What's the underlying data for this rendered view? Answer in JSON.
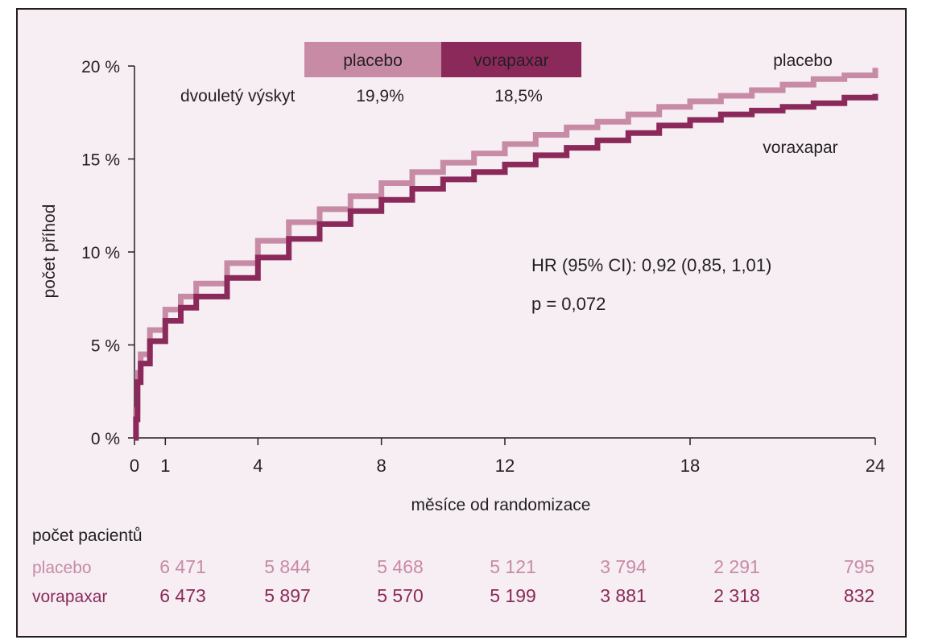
{
  "chart_data": {
    "type": "line",
    "title": "",
    "xlabel": "měsíce od randomizace",
    "ylabel": "počet příhod",
    "x_ticks": [
      0,
      1,
      4,
      8,
      12,
      18,
      24
    ],
    "y_ticks": [
      0,
      5,
      10,
      15,
      20
    ],
    "y_tick_labels": [
      "0 %",
      "5 %",
      "10 %",
      "15 %",
      "20 %"
    ],
    "xlim": [
      0,
      24
    ],
    "ylim": [
      0,
      20
    ],
    "grid": false,
    "series": [
      {
        "name": "placebo",
        "color": "#c88ba6",
        "points": [
          [
            0,
            0
          ],
          [
            0.05,
            1.5
          ],
          [
            0.1,
            3.5
          ],
          [
            0.2,
            4.5
          ],
          [
            0.5,
            5.8
          ],
          [
            1,
            6.9
          ],
          [
            1.5,
            7.6
          ],
          [
            2,
            8.3
          ],
          [
            3,
            9.4
          ],
          [
            4,
            10.6
          ],
          [
            5,
            11.6
          ],
          [
            6,
            12.3
          ],
          [
            7,
            13.0
          ],
          [
            8,
            13.7
          ],
          [
            9,
            14.3
          ],
          [
            10,
            14.8
          ],
          [
            11,
            15.3
          ],
          [
            12,
            15.8
          ],
          [
            13,
            16.3
          ],
          [
            14,
            16.7
          ],
          [
            15,
            17.0
          ],
          [
            16,
            17.4
          ],
          [
            17,
            17.8
          ],
          [
            18,
            18.1
          ],
          [
            19,
            18.4
          ],
          [
            20,
            18.7
          ],
          [
            21,
            19.0
          ],
          [
            22,
            19.3
          ],
          [
            23,
            19.5
          ],
          [
            24,
            19.9
          ]
        ]
      },
      {
        "name": "voraxapar",
        "color": "#8b2a5a",
        "points": [
          [
            0,
            0
          ],
          [
            0.05,
            1.0
          ],
          [
            0.1,
            3.0
          ],
          [
            0.2,
            4.0
          ],
          [
            0.5,
            5.2
          ],
          [
            1,
            6.3
          ],
          [
            1.5,
            7.0
          ],
          [
            2,
            7.6
          ],
          [
            3,
            8.6
          ],
          [
            4,
            9.7
          ],
          [
            5,
            10.7
          ],
          [
            6,
            11.5
          ],
          [
            7,
            12.2
          ],
          [
            8,
            12.8
          ],
          [
            9,
            13.4
          ],
          [
            10,
            13.9
          ],
          [
            11,
            14.3
          ],
          [
            12,
            14.7
          ],
          [
            13,
            15.2
          ],
          [
            14,
            15.6
          ],
          [
            15,
            16.0
          ],
          [
            16,
            16.4
          ],
          [
            17,
            16.8
          ],
          [
            18,
            17.1
          ],
          [
            19,
            17.4
          ],
          [
            20,
            17.6
          ],
          [
            21,
            17.8
          ],
          [
            22,
            18.0
          ],
          [
            23,
            18.3
          ],
          [
            24,
            18.5
          ]
        ]
      }
    ],
    "annotations": {
      "hr_text": "HR (95% CI): 0,92 (0,85, 1,01)",
      "p_text": "p = 0,072"
    },
    "legend_box": {
      "header_placebo": "placebo",
      "header_vorapaxar": "vorapaxar",
      "row_label": "dvouletý výskyt",
      "value_placebo": "19,9%",
      "value_vorapaxar": "18,5%"
    },
    "risk_table": {
      "title": "počet pacientů",
      "rows": [
        {
          "label": "placebo",
          "color": "#c88ba6",
          "values": [
            "6 471",
            "5 844",
            "5 468",
            "5 121",
            "3 794",
            "2 291",
            "795"
          ]
        },
        {
          "label": "vorapaxar",
          "color": "#8b2a5a",
          "values": [
            "6 473",
            "5 897",
            "5 570",
            "5 199",
            "3 881",
            "2 318",
            "832"
          ]
        }
      ]
    }
  }
}
